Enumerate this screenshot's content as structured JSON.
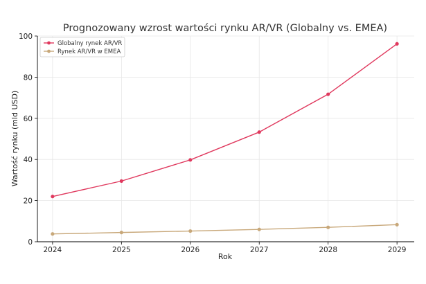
{
  "chart_data": {
    "type": "line",
    "title": "Prognozowany wzrost wartości rynku AR/VR (Globalny vs. EMEA)",
    "xlabel": "Rok",
    "ylabel": "Wartość rynku (mld USD)",
    "x": [
      2024,
      2025,
      2026,
      2027,
      2028,
      2029
    ],
    "xlim": [
      2023.78,
      2029.25
    ],
    "ylim": [
      0,
      100
    ],
    "yticks": [
      0,
      20,
      40,
      60,
      80,
      100
    ],
    "grid": true,
    "legend_position": "top-left",
    "series": [
      {
        "name": "Globalny rynek AR/VR",
        "color": "#e0395e",
        "values": [
          22.0,
          29.5,
          39.8,
          53.3,
          71.7,
          96.2
        ]
      },
      {
        "name": "Rynek AR/VR w EMEA",
        "color": "#c8a87a",
        "values": [
          3.8,
          4.5,
          5.2,
          6.0,
          7.0,
          8.3
        ]
      }
    ]
  }
}
